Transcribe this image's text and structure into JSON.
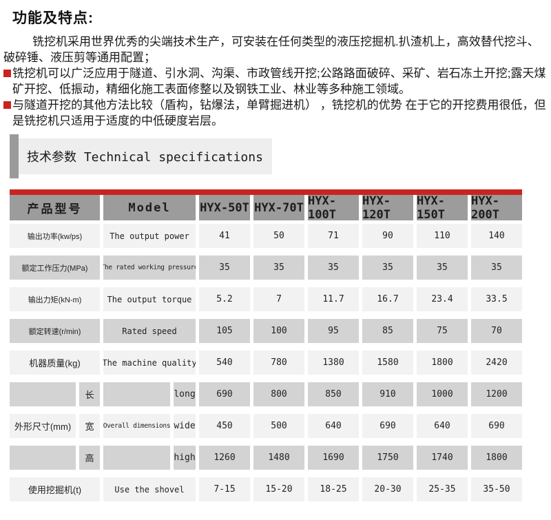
{
  "title": "功能及特点:",
  "intro": {
    "paragraphs": [
      {
        "bullet": false,
        "text": "铣挖机采用世界优秀的尖端技术生产，可安装在任何类型的液压挖掘机.扒渣机上，高效替代挖斗、破碎锤、液压剪等通用配置；"
      },
      {
        "bullet": true,
        "text": "铣挖机可以广泛应用于隧道、引水洞、沟渠、市政管线开挖;公路路面破碎、采矿、岩石冻土开挖;露天煤矿开挖、低振动，精细化施工表面修整以及钢铁工业、林业等多种施工领域。"
      },
      {
        "bullet": true,
        "text": "与隧道开挖的其他方法比较（盾构，钻爆法，单臂掘进机） ，铣挖机的优势 在于它的开挖费用很低，但是铣挖机只适用于适度的中低硬度岩层。"
      }
    ]
  },
  "section": {
    "label": "技术参数 Technical specifications"
  },
  "table": {
    "header": {
      "label_zh": "产品型号",
      "label_en": "Model",
      "models": [
        "HYX-50T",
        "HYX-70T",
        "HYX-100T",
        "HYX-120T",
        "HYX-150T",
        "HYX-200T"
      ]
    },
    "rows": [
      {
        "type": "normal",
        "label_zh": "输出功率(kw/ps)",
        "label_en": "The output power",
        "values": [
          "41",
          "50",
          "71",
          "90",
          "110",
          "140"
        ]
      },
      {
        "type": "normal",
        "label_zh": "额定工作压力(MPa)",
        "label_en": "The rated working pressure",
        "values": [
          "35",
          "35",
          "35",
          "35",
          "35",
          "35"
        ]
      },
      {
        "type": "normal",
        "label_zh": "输出力矩(kN-m)",
        "label_en": "The output torque",
        "values": [
          "5.2",
          "7",
          "11.7",
          "16.7",
          "23.4",
          "33.5"
        ]
      },
      {
        "type": "normal",
        "label_zh": "额定转速(r/min)",
        "label_en": "Rated speed",
        "values": [
          "105",
          "100",
          "95",
          "85",
          "75",
          "70"
        ]
      },
      {
        "type": "normal",
        "label_zh": "机器质量(kg)",
        "label_en": "The machine quality",
        "values": [
          "540",
          "780",
          "1380",
          "1580",
          "1800",
          "2420"
        ]
      },
      {
        "type": "split",
        "label_zh": "",
        "sub_zh": "长",
        "label_en": "",
        "sub_en": "long",
        "values": [
          "690",
          "800",
          "850",
          "910",
          "1000",
          "1200"
        ]
      },
      {
        "type": "split",
        "label_zh": "外形尺寸(mm)",
        "sub_zh": "宽",
        "label_en": "Overall dimensions",
        "sub_en": "wide",
        "values": [
          "450",
          "500",
          "640",
          "690",
          "640",
          "690"
        ]
      },
      {
        "type": "split",
        "label_zh": "",
        "sub_zh": "高",
        "label_en": "",
        "sub_en": "high",
        "values": [
          "1260",
          "1480",
          "1690",
          "1750",
          "1740",
          "1800"
        ]
      },
      {
        "type": "normal",
        "label_zh": "使用挖掘机(t)",
        "label_en": "Use the shovel",
        "values": [
          "7-15",
          "15-20",
          "18-25",
          "20-30",
          "25-35",
          "35-50"
        ]
      }
    ]
  },
  "colors": {
    "accent_red": "#c9241f",
    "table_header_gray": "#9c9c9c",
    "section_bar_gray": "#9a9a9a",
    "section_box_bg": "#eeeeee",
    "row_light": "#f2f2f2",
    "row_dark": "#d3d3d3"
  }
}
